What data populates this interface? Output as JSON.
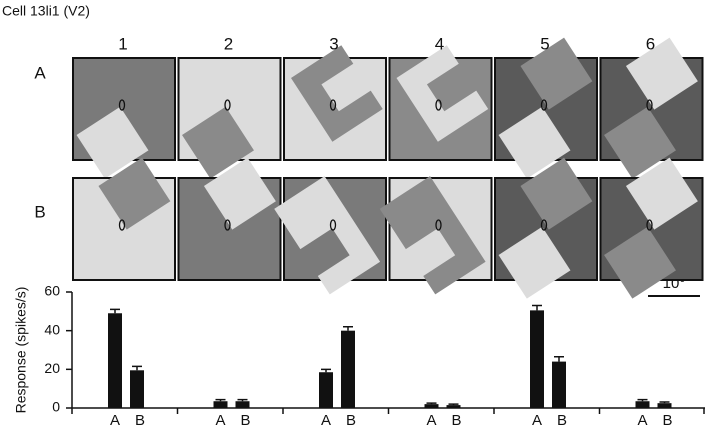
{
  "chart_data": {
    "type": "bar",
    "title": "Cell 13li1 (V2)",
    "ylabel": "Response (spikes/s)",
    "categories": [
      "1",
      "2",
      "3",
      "4",
      "5",
      "6"
    ],
    "series": [
      {
        "name": "A",
        "color": "#111111",
        "values": [
          49,
          3.5,
          18.5,
          2,
          50.5,
          3.5
        ],
        "errors": [
          2,
          0.8,
          1.5,
          0.5,
          2.5,
          0.8
        ]
      },
      {
        "name": "B",
        "color": "#111111",
        "values": [
          19.5,
          3.5,
          40,
          1.5,
          24,
          2.5
        ],
        "errors": [
          2,
          0.8,
          2,
          0.5,
          2.5,
          0.6
        ]
      }
    ],
    "ylim": [
      0,
      60
    ],
    "yticks": [
      0,
      20,
      40,
      60
    ],
    "scale_bar": "10°"
  }
}
